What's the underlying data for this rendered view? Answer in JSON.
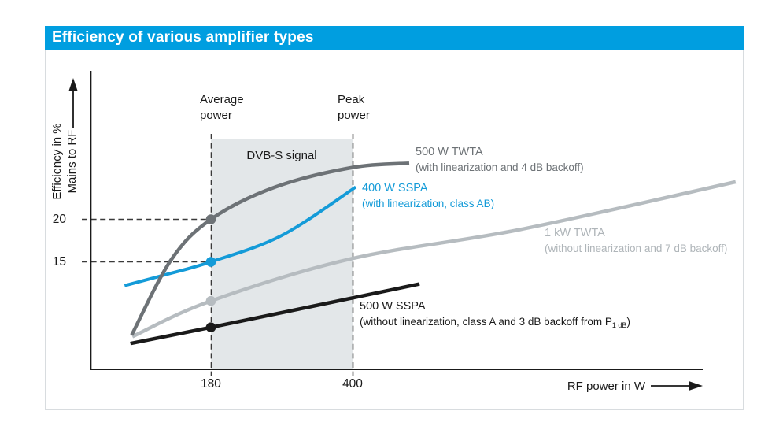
{
  "header": {
    "title": "Efficiency of various amplifier types",
    "background_color": "#009EE0",
    "text_color": "#FFFFFF"
  },
  "y_axis": {
    "title_line1": "Efficiency in %",
    "title_line2": "Mains to RF",
    "ticks": [
      "20",
      "15"
    ]
  },
  "x_axis": {
    "title": "RF power in W",
    "ticks": [
      "180",
      "400"
    ]
  },
  "annotations": {
    "average_power_line1": "Average",
    "average_power_line2": "power",
    "peak_power_line1": "Peak",
    "peak_power_line2": "power",
    "shaded_region_label": "DVB-S signal"
  },
  "chart_data": {
    "type": "line",
    "title": "Efficiency of various amplifier types",
    "xlabel": "RF power in W",
    "ylabel": "Efficiency in %, Mains to RF",
    "x_ticks_w": [
      180,
      400
    ],
    "y_ticks_percent": [
      20,
      15
    ],
    "x_range_w": [
      0,
      1070
    ],
    "y_range_percent": [
      2.4,
      37
    ],
    "grid": false,
    "legend_position": "inline labels next to curves",
    "shaded_band_w": [
      180,
      400
    ],
    "shaded_band_color": "#E3E7E9",
    "guide_lines_percent": [
      20,
      15
    ],
    "series": [
      {
        "name": "1 kW TWTA",
        "detail": "(without linearization and 7 dB backoff)",
        "color": "#B6BCC0",
        "points_w_percent": [
          [
            58,
            6.2
          ],
          [
            180,
            10.4
          ],
          [
            400,
            15.4
          ],
          [
            660,
            18.8
          ],
          [
            995,
            24.4
          ]
        ],
        "marker_w_percent": [
          180,
          10.4
        ]
      },
      {
        "name": "400 W SSPA",
        "detail": "(with linearization, class AB)",
        "color": "#149BD8",
        "points_w_percent": [
          [
            46,
            12.2
          ],
          [
            105,
            13.4
          ],
          [
            180,
            15
          ],
          [
            290,
            18.1
          ],
          [
            405,
            23.8
          ]
        ],
        "marker_w_percent": [
          180,
          15
        ]
      },
      {
        "name": "500 W TWTA",
        "detail": "(with linearization and 4 dB backoff)",
        "color": "#6D7276",
        "points_w_percent": [
          [
            57,
            6.4
          ],
          [
            118,
            15.2
          ],
          [
            180,
            20
          ],
          [
            280,
            23.8
          ],
          [
            400,
            26.1
          ],
          [
            488,
            26.6
          ]
        ],
        "marker_w_percent": [
          180,
          20
        ]
      },
      {
        "name": "500 W SSPA",
        "detail_prefix": "(without linearization, class A and 3 dB backoff from P",
        "detail_sub": "1 dB",
        "detail_suffix": ")",
        "color": "#1A1A1A",
        "points_w_percent": [
          [
            55,
            5.4
          ],
          [
            180,
            7.3
          ],
          [
            504,
            12.4
          ]
        ],
        "marker_w_percent": [
          180,
          7.3
        ]
      }
    ]
  }
}
